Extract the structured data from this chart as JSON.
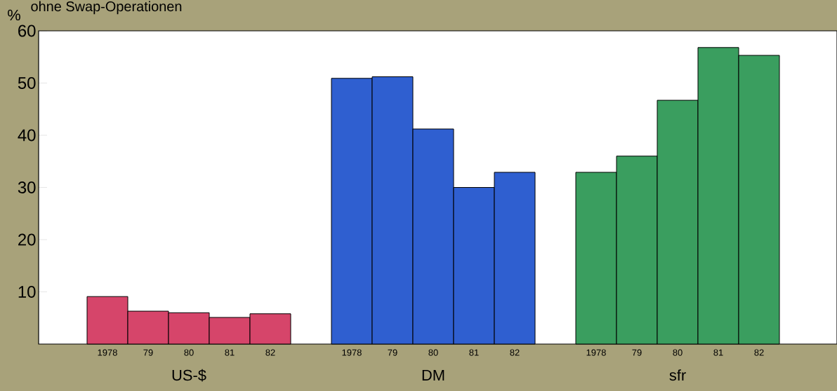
{
  "chart_data": {
    "type": "bar",
    "title": "ohne Swap-Operationen",
    "ylabel": "%",
    "categories": [
      "1978",
      "79",
      "80",
      "81",
      "82",
      null,
      "1978",
      "79",
      "80",
      "81",
      "82",
      null,
      "1978",
      "79",
      "80",
      "81",
      "82"
    ],
    "series": [
      {
        "name": "US-$",
        "color": "#d6456a",
        "values": [
          9.1,
          6.3,
          6.0,
          5.1,
          5.8,
          null,
          null,
          null,
          null,
          null,
          null,
          null,
          null,
          null,
          null,
          null,
          null
        ]
      },
      {
        "name": "DM",
        "color": "#2f5fd0",
        "values": [
          null,
          null,
          null,
          null,
          null,
          null,
          50.9,
          51.2,
          41.2,
          30,
          32.9,
          null,
          null,
          null,
          null,
          null,
          null
        ]
      },
      {
        "name": "sfr",
        "color": "#3a9e5f",
        "values": [
          null,
          null,
          null,
          null,
          null,
          null,
          null,
          null,
          null,
          null,
          null,
          null,
          32.9,
          36,
          46.7,
          56.8,
          55.3
        ]
      }
    ],
    "ylim": [
      0,
      60
    ],
    "yticks": [
      10,
      20,
      30,
      40,
      50,
      60
    ],
    "grid": false
  }
}
